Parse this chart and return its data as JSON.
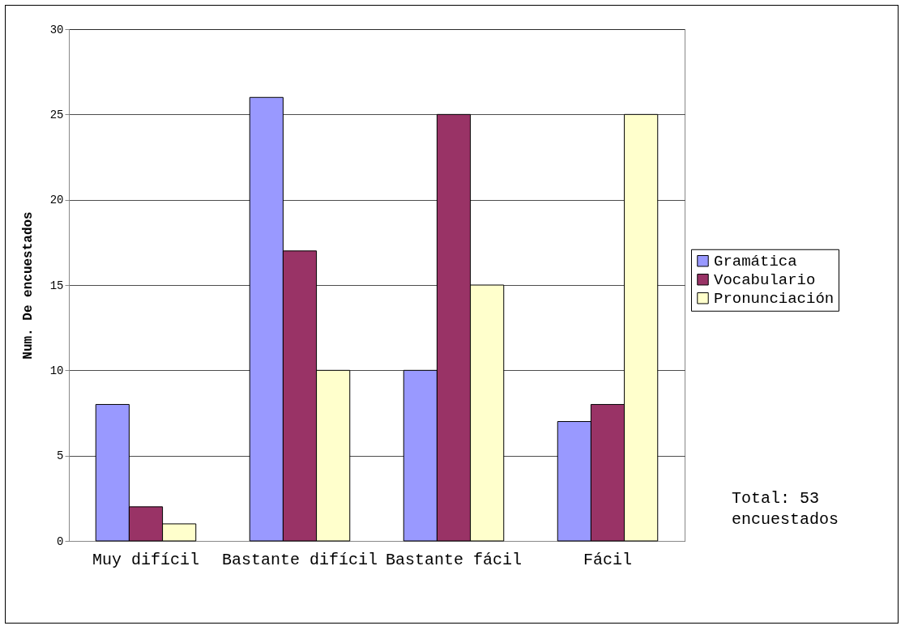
{
  "chart_data": {
    "type": "bar",
    "ylabel": "Num. De encuestados",
    "categories": [
      "Muy difícil",
      "Bastante difícil",
      "Bastante fácil",
      "Fácil"
    ],
    "series": [
      {
        "name": "Gramática",
        "color": "#9999ff",
        "values": [
          8,
          26,
          10,
          7
        ]
      },
      {
        "name": "Vocabulario",
        "color": "#993366",
        "values": [
          2,
          17,
          25,
          8
        ]
      },
      {
        "name": "Pronunciación",
        "color": "#ffffcc",
        "values": [
          1,
          10,
          15,
          25
        ]
      }
    ],
    "ylim": [
      0,
      30
    ],
    "yticks": [
      0,
      5,
      10,
      15,
      20,
      25,
      30
    ],
    "grid": "y",
    "legend": "right",
    "annotations": [
      "Total: 53 encuestados"
    ]
  }
}
